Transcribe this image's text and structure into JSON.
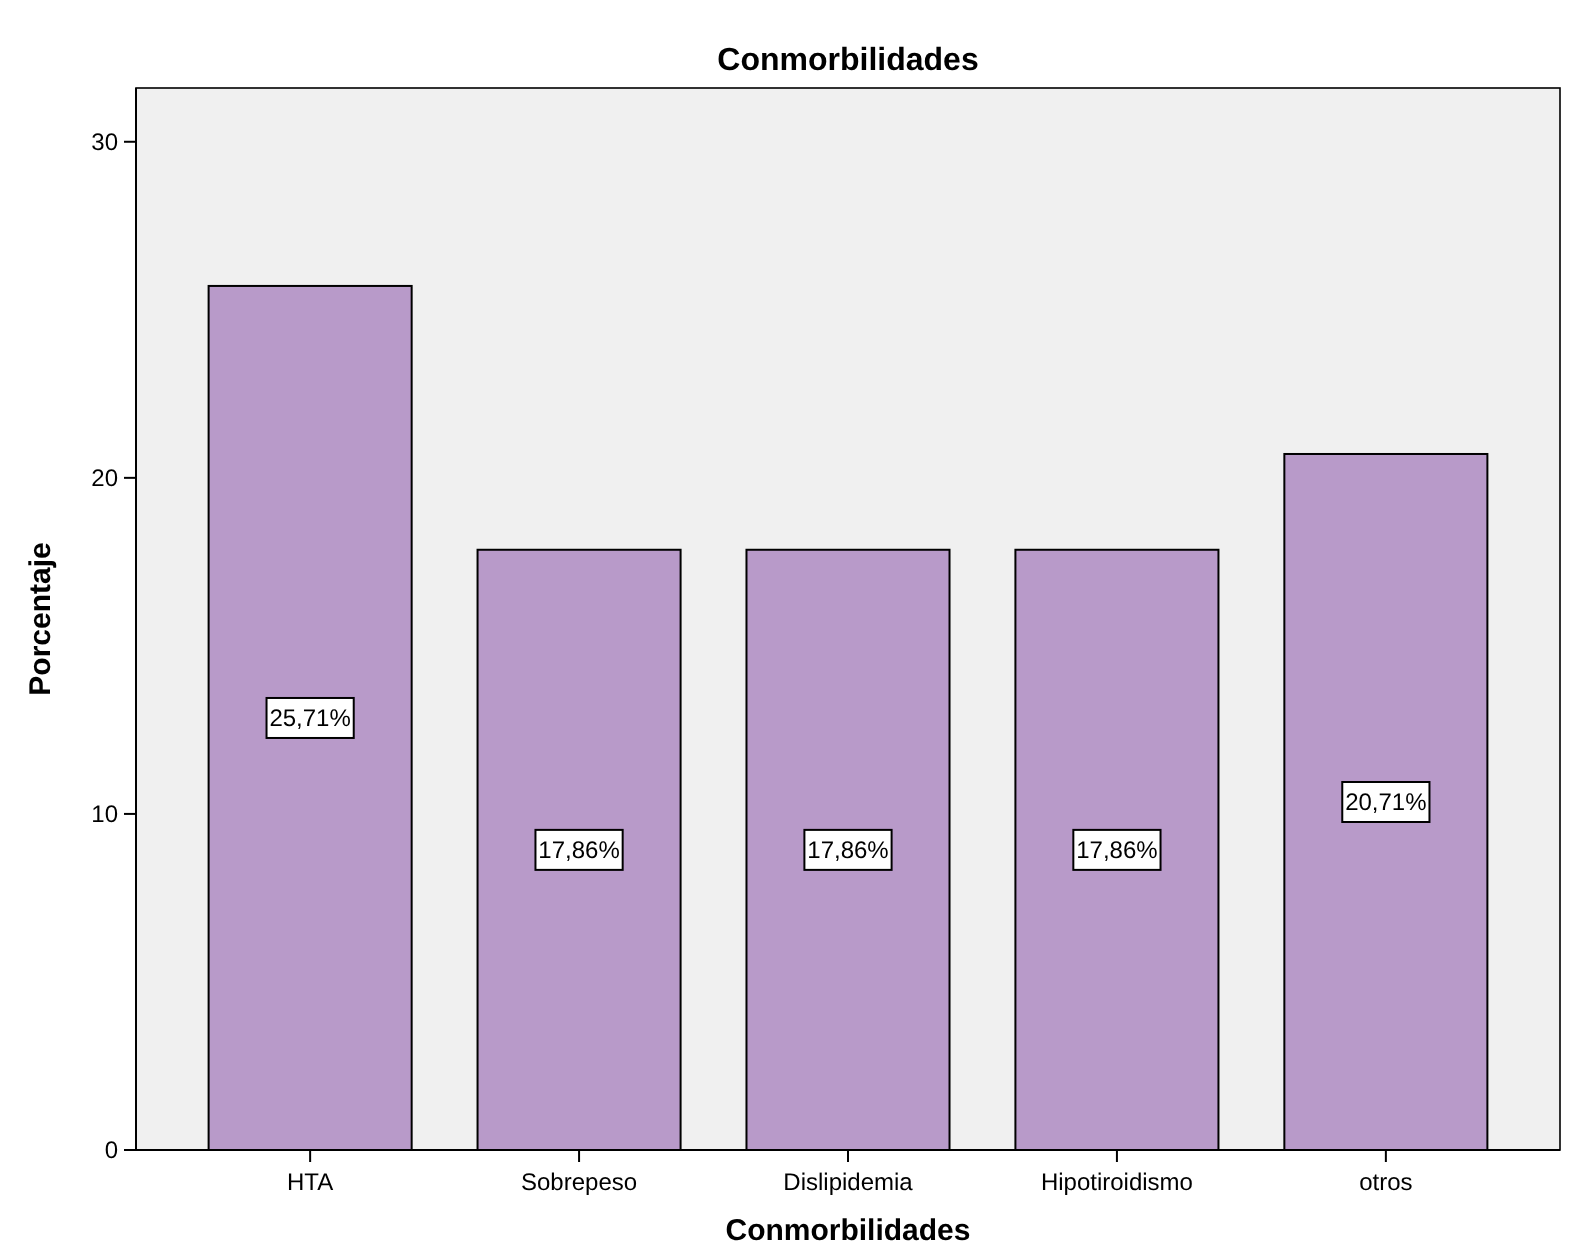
{
  "chart_data": {
    "type": "bar",
    "title": "Conmorbilidades",
    "xlabel": "Conmorbilidades",
    "ylabel": "Porcentaje",
    "categories": [
      "HTA",
      "Sobrepeso",
      "Dislipidemia",
      "Hipotiroidismo",
      "otros"
    ],
    "values": [
      25.71,
      17.86,
      17.86,
      17.86,
      20.71
    ],
    "value_labels": [
      "25,71%",
      "17,86%",
      "17,86%",
      "17,86%",
      "20,71%"
    ],
    "color": "#b89ac9",
    "ylim": [
      0,
      31.6
    ],
    "yticks": [
      0,
      10,
      20,
      30
    ],
    "grid": false
  }
}
